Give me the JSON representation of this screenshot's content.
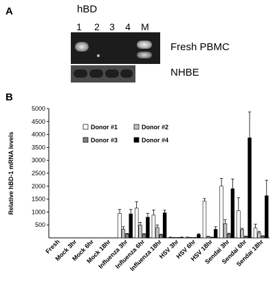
{
  "panel_a": {
    "label": "A",
    "gene": "hBD",
    "lanes": [
      "1",
      "2",
      "3",
      "4",
      "M"
    ],
    "row_labels": [
      "Fresh PBMC",
      "NHBE"
    ]
  },
  "panel_b": {
    "label": "B"
  },
  "chart_data": {
    "type": "bar",
    "title": "",
    "xlabel": "",
    "ylabel": "Relative hBD-1 mRNA levels",
    "ylim": [
      0,
      5000
    ],
    "yticks": [
      500,
      1000,
      1500,
      2000,
      2500,
      3000,
      3500,
      4000,
      4500,
      5000
    ],
    "grid": false,
    "legend_position": "upper-left",
    "categories": [
      "Fresh",
      "Mock 3hr",
      "Mock 6hr",
      "Mock 18hr",
      "Influenza 3hr",
      "Influenza 6hr",
      "Influenza 18hr",
      "HSV 3hr",
      "HSV 6hr",
      "HSV 18hr",
      "Sendai 3hr",
      "Sendai 6hr",
      "Sendai 18hr"
    ],
    "series": [
      {
        "name": "Donor #1",
        "color": "#ffffff",
        "values": [
          0,
          0,
          0,
          0,
          950,
          1150,
          880,
          20,
          20,
          1420,
          2000,
          1050,
          380
        ],
        "errors": [
          0,
          0,
          0,
          0,
          150,
          250,
          200,
          10,
          10,
          100,
          300,
          500,
          150
        ]
      },
      {
        "name": "Donor #2",
        "color": "#c0c0c0",
        "values": [
          0,
          0,
          0,
          0,
          330,
          500,
          400,
          10,
          10,
          40,
          550,
          320,
          200
        ],
        "errors": [
          0,
          0,
          0,
          0,
          100,
          100,
          100,
          5,
          5,
          20,
          150,
          50,
          50
        ]
      },
      {
        "name": "Donor #3",
        "color": "#808080",
        "values": [
          0,
          0,
          0,
          0,
          150,
          140,
          120,
          10,
          10,
          20,
          150,
          50,
          60
        ],
        "errors": [
          0,
          0,
          0,
          0,
          20,
          20,
          20,
          5,
          5,
          10,
          30,
          20,
          20
        ]
      },
      {
        "name": "Donor #4",
        "color": "#000000",
        "values": [
          0,
          0,
          0,
          0,
          930,
          800,
          970,
          20,
          130,
          330,
          1900,
          3870,
          1630
        ],
        "errors": [
          0,
          0,
          0,
          0,
          170,
          150,
          100,
          10,
          30,
          100,
          380,
          1000,
          600
        ]
      }
    ]
  }
}
